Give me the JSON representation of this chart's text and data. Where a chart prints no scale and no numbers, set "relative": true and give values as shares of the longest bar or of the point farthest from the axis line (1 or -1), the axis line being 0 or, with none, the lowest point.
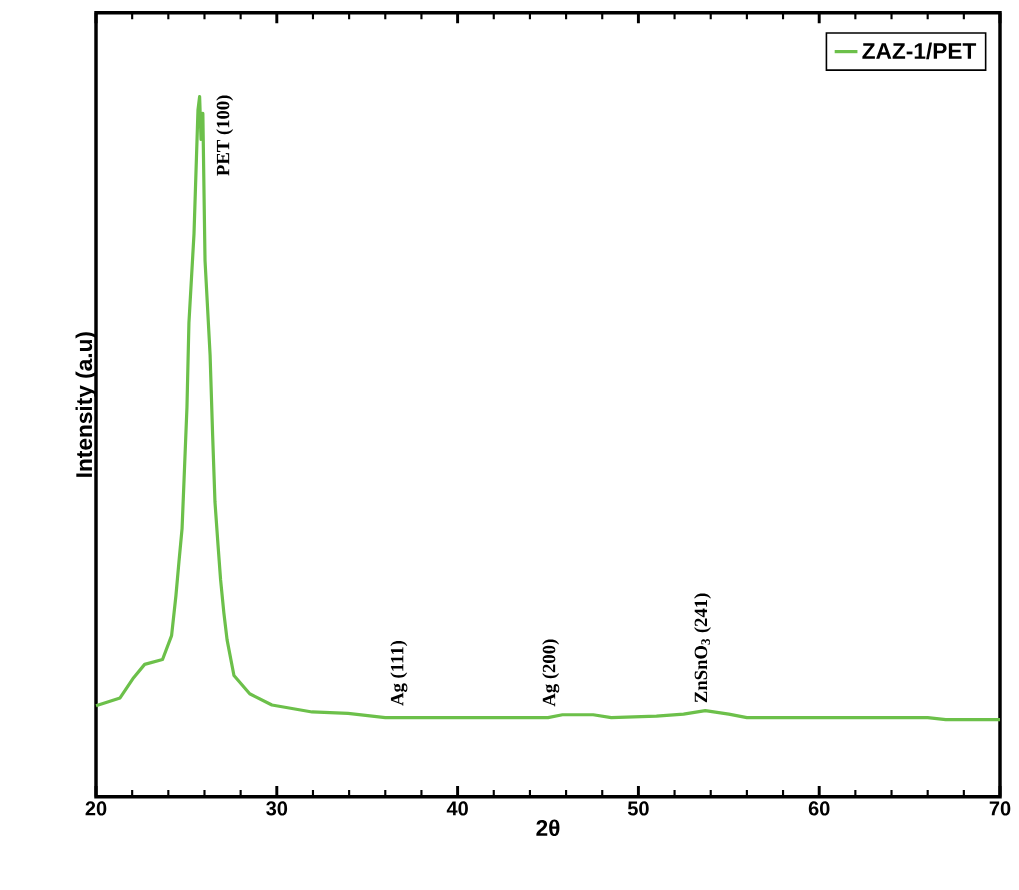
{
  "chart_data": {
    "type": "line",
    "relative": true,
    "xlabel": "2θ",
    "ylabel": "Intensity (a.u)",
    "xlim": [
      20,
      70
    ],
    "xticks": [
      20,
      30,
      40,
      50,
      60,
      70
    ],
    "legend": "top right",
    "grid": false,
    "line_style": "solid",
    "annotations": [
      {
        "text": "PET (100)",
        "x": 25.97,
        "y": 0.871
      },
      {
        "text": "Ag (111)",
        "x": 35.6,
        "y": 0.114
      },
      {
        "text": "Ag (200)",
        "x": 44.0,
        "y": 0.113
      },
      {
        "text": "ZnSnO$_{3}$ (241)",
        "x": 52.4,
        "y": 0.118
      }
    ],
    "series": [
      {
        "name": "ZAZ-1/PET",
        "color": "#6cc04a",
        "x": [
          20,
          21.33,
          22.08,
          22.69,
          23.68,
          24.18,
          24.42,
          24.59,
          24.76,
          24.87,
          25.03,
          25.14,
          25.42,
          25.64,
          25.73,
          25.81,
          25.91,
          26.03,
          26.31,
          26.45,
          26.58,
          26.75,
          26.89,
          27.07,
          27.25,
          27.63,
          28.5,
          29.73,
          31.95,
          33.94,
          36,
          40,
          45,
          45.8,
          47.5,
          48.5,
          51,
          52.5,
          53.7,
          55,
          56,
          60,
          66,
          67,
          70
        ],
        "values": [
          0.13,
          0.141,
          0.17,
          0.189,
          0.196,
          0.23,
          0.287,
          0.336,
          0.383,
          0.453,
          0.556,
          0.677,
          0.804,
          0.981,
          1.0,
          0.939,
          0.976,
          0.766,
          0.631,
          0.517,
          0.421,
          0.359,
          0.31,
          0.263,
          0.224,
          0.173,
          0.147,
          0.131,
          0.121,
          0.119,
          0.113,
          0.113,
          0.113,
          0.117,
          0.117,
          0.113,
          0.115,
          0.118,
          0.123,
          0.118,
          0.113,
          0.113,
          0.113,
          0.11,
          0.11
        ]
      }
    ]
  }
}
